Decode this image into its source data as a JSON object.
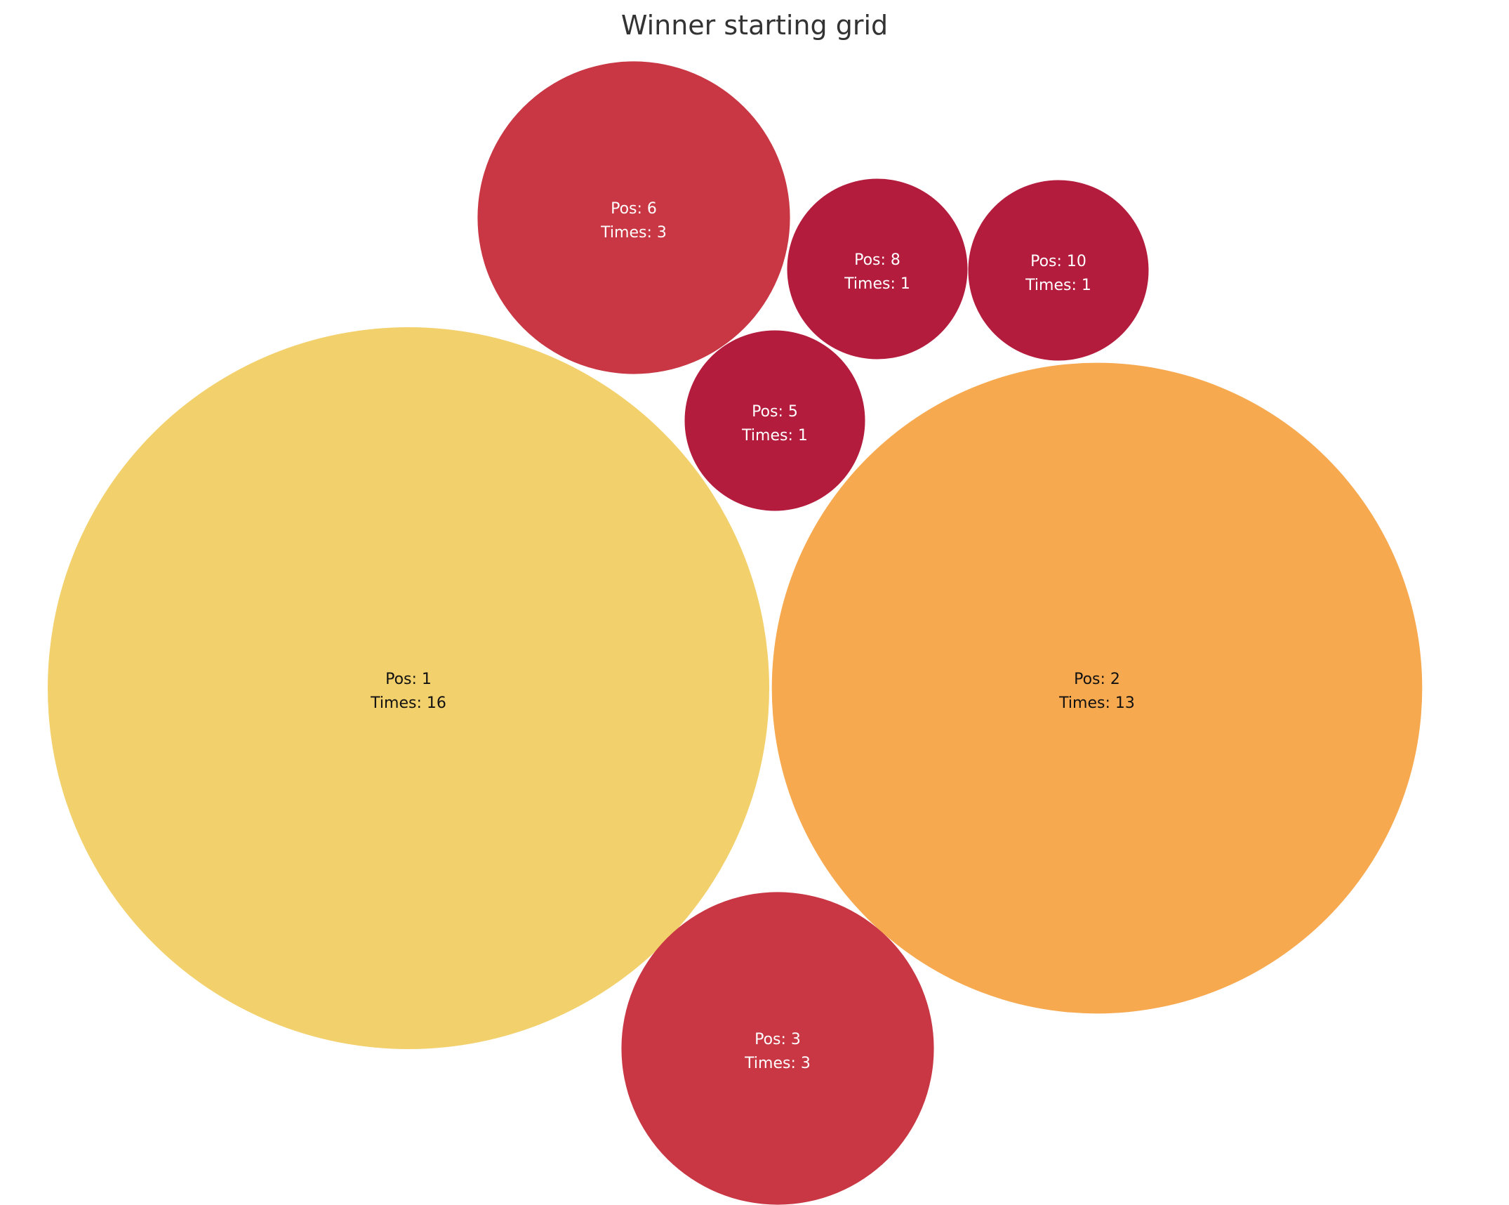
{
  "chart_data": {
    "type": "bubble",
    "title": "Winner starting grid",
    "label_prefix_pos": "Pos: ",
    "label_prefix_times": "Times: ",
    "bubbles": [
      {
        "pos": 1,
        "times": 16,
        "color": "#f2d06b",
        "text_color": "#111111"
      },
      {
        "pos": 2,
        "times": 13,
        "color": "#f7a94f",
        "text_color": "#111111"
      },
      {
        "pos": 3,
        "times": 3,
        "color": "#c83743",
        "text_color": "#ffffff"
      },
      {
        "pos": 6,
        "times": 3,
        "color": "#c83743",
        "text_color": "#ffffff"
      },
      {
        "pos": 5,
        "times": 1,
        "color": "#b41c3e",
        "text_color": "#ffffff"
      },
      {
        "pos": 8,
        "times": 1,
        "color": "#b41c3e",
        "text_color": "#ffffff"
      },
      {
        "pos": 10,
        "times": 1,
        "color": "#b41c3e",
        "text_color": "#ffffff"
      }
    ]
  }
}
